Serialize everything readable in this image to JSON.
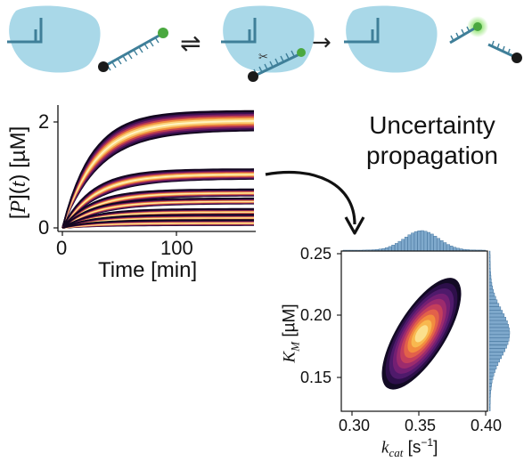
{
  "reaction": {
    "reversible_arrow": "⇌",
    "forward_arrow": "→"
  },
  "heading": {
    "line1": "Uncertainty",
    "line2": "propagation"
  },
  "left_plot": {
    "ylabel_prefix": "[",
    "ylabel_var": "P",
    "ylabel_mid": "](",
    "ylabel_t": "t",
    "ylabel_suffix": ") [µM]",
    "xlabel": "Time [min]",
    "x_ticks": [
      "0",
      "100"
    ],
    "y_ticks": [
      "0",
      "2"
    ]
  },
  "right_plot": {
    "xlabel_var": "k",
    "xlabel_sub": "cat",
    "xlabel_unit": " [s",
    "xlabel_exp": "−1",
    "xlabel_close": "]",
    "ylabel_var": "K",
    "ylabel_sub": "M",
    "ylabel_unit": " [µM]",
    "x_ticks": [
      "0.30",
      "0.35",
      "0.40"
    ],
    "y_ticks": [
      "0.25",
      "0.20",
      "0.15"
    ]
  },
  "colors": {
    "enzyme": "#a9d8e8",
    "substrate_strand": "#3f7f99",
    "green_label": "#4aa83f",
    "black_label": "#1a1a1a",
    "histogram": "#7fa9cc"
  },
  "chart_data": [
    {
      "type": "line",
      "x": [
        0,
        25,
        50,
        75,
        100,
        125,
        150,
        170
      ],
      "xlabel": "Time [min]",
      "ylabel": "[P](t) [µM]",
      "xlim": [
        -5,
        175
      ],
      "ylim": [
        0,
        2.3
      ],
      "series": [
        {
          "values": [
            0,
            1.02,
            1.75,
            1.98,
            2.02,
            2.03,
            2.03,
            2.03
          ]
        },
        {
          "values": [
            0,
            0.58,
            0.9,
            1.0,
            1.02,
            1.02,
            1.02,
            1.02
          ]
        },
        {
          "values": [
            0,
            0.38,
            0.6,
            0.66,
            0.67,
            0.67,
            0.67,
            0.67
          ]
        },
        {
          "values": [
            0,
            0.3,
            0.45,
            0.5,
            0.51,
            0.51,
            0.51,
            0.51
          ]
        },
        {
          "values": [
            0,
            0.22,
            0.28,
            0.31,
            0.31,
            0.31,
            0.31,
            0.31
          ]
        },
        {
          "values": [
            0,
            0.14,
            0.19,
            0.2,
            0.2,
            0.2,
            0.2,
            0.2
          ]
        },
        {
          "values": [
            0,
            0.07,
            0.09,
            0.1,
            0.1,
            0.1,
            0.1,
            0.1
          ]
        }
      ]
    },
    {
      "type": "heatmap",
      "xlabel": "kcat [s^-1]",
      "ylabel": "KM [µM]",
      "xlim": [
        0.29,
        0.4
      ],
      "ylim": [
        0.125,
        0.25
      ],
      "mode": [
        0.352,
        0.185
      ],
      "levels": 10
    }
  ]
}
